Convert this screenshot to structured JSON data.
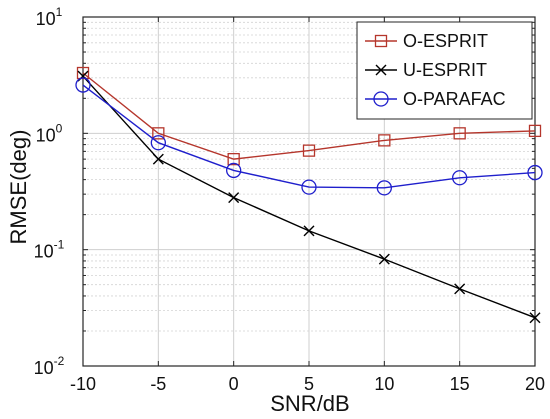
{
  "chart_data": {
    "type": "line",
    "title": "",
    "xlabel": "SNR/dB",
    "ylabel": "RMSE(deg)",
    "x": [
      -10,
      -5,
      0,
      5,
      10,
      15,
      20
    ],
    "x_ticks": [
      -10,
      -5,
      0,
      5,
      10,
      15,
      20
    ],
    "xlim": [
      -10,
      20
    ],
    "ylim": [
      0.01,
      10
    ],
    "y_scale": "log",
    "y_ticks": [
      {
        "base": "10",
        "exp": "-2",
        "value": 0.01
      },
      {
        "base": "10",
        "exp": "-1",
        "value": 0.1
      },
      {
        "base": "10",
        "exp": "0",
        "value": 1
      },
      {
        "base": "10",
        "exp": "1",
        "value": 10
      }
    ],
    "grid": true,
    "legend_position": "top-right",
    "series": [
      {
        "name": "O-ESPRIT",
        "values": [
          3.3,
          1.0,
          0.6,
          0.71,
          0.87,
          1.0,
          1.05
        ],
        "color": "#b5362c",
        "marker": "square"
      },
      {
        "name": "U-ESPRIT",
        "values": [
          3.1,
          0.6,
          0.28,
          0.145,
          0.083,
          0.046,
          0.026
        ],
        "color": "#000000",
        "marker": "x"
      },
      {
        "name": "O-PARAFAC",
        "values": [
          2.6,
          0.83,
          0.48,
          0.345,
          0.34,
          0.415,
          0.46
        ],
        "color": "#1f1fcc",
        "marker": "circle"
      }
    ]
  }
}
